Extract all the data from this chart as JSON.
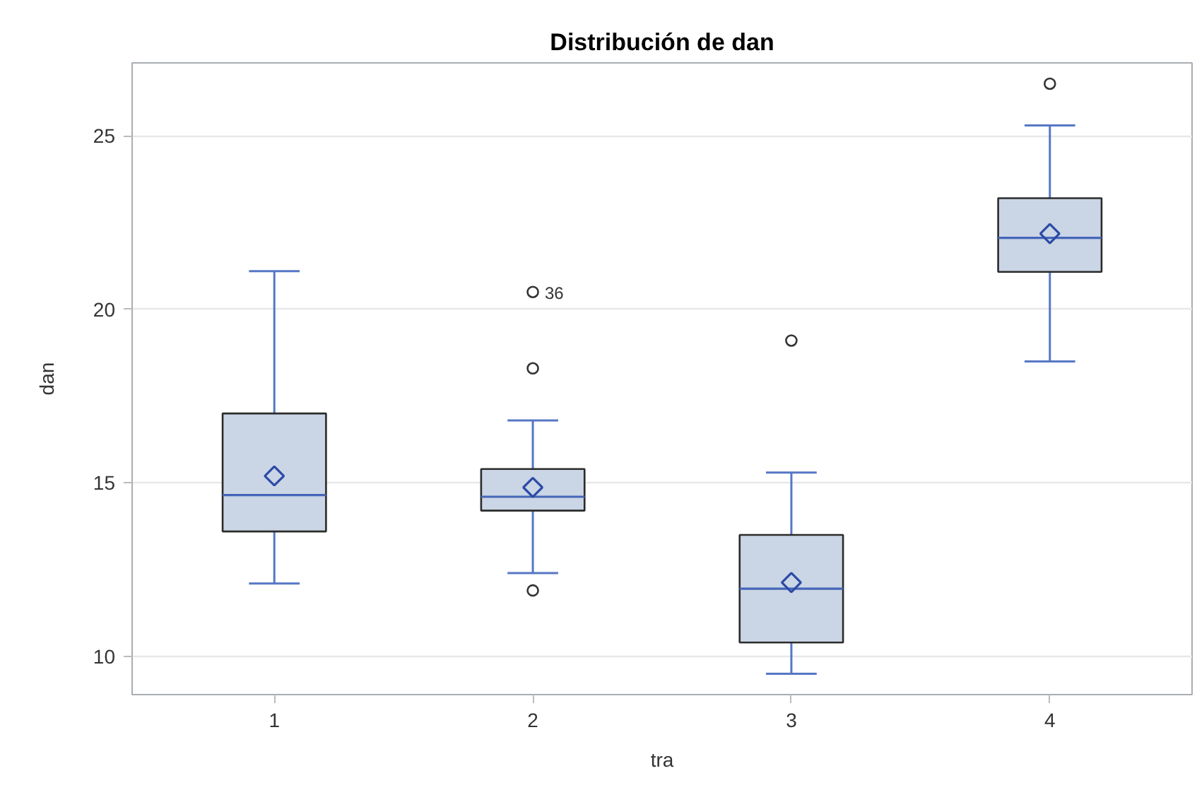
{
  "chart_data": {
    "type": "box",
    "title": "Distribución de dan",
    "xlabel": "tra",
    "ylabel": "dan",
    "categories": [
      "1",
      "2",
      "3",
      "4"
    ],
    "boxes": [
      {
        "low": 12.1,
        "q1": 13.6,
        "median": 14.65,
        "q3": 17.0,
        "high": 21.1,
        "mean": 15.2
      },
      {
        "low": 12.4,
        "q1": 14.2,
        "median": 14.6,
        "q3": 15.4,
        "high": 16.8,
        "mean": 14.87,
        "outliers": [
          20.5,
          18.3,
          11.9
        ]
      },
      {
        "low": 9.5,
        "q1": 10.4,
        "median": 11.95,
        "q3": 13.5,
        "high": 15.3,
        "mean": 12.13,
        "outliers": [
          19.1
        ]
      },
      {
        "low": 18.5,
        "q1": 21.08,
        "median": 22.06,
        "q3": 23.2,
        "high": 25.3,
        "mean": 22.18,
        "outliers": [
          26.5
        ]
      }
    ],
    "color": "#cad5e5",
    "ylim": [
      8.9,
      27.1
    ],
    "yticks": [
      10,
      15,
      20,
      25
    ],
    "grid": "y",
    "annotations": [
      "36"
    ]
  }
}
